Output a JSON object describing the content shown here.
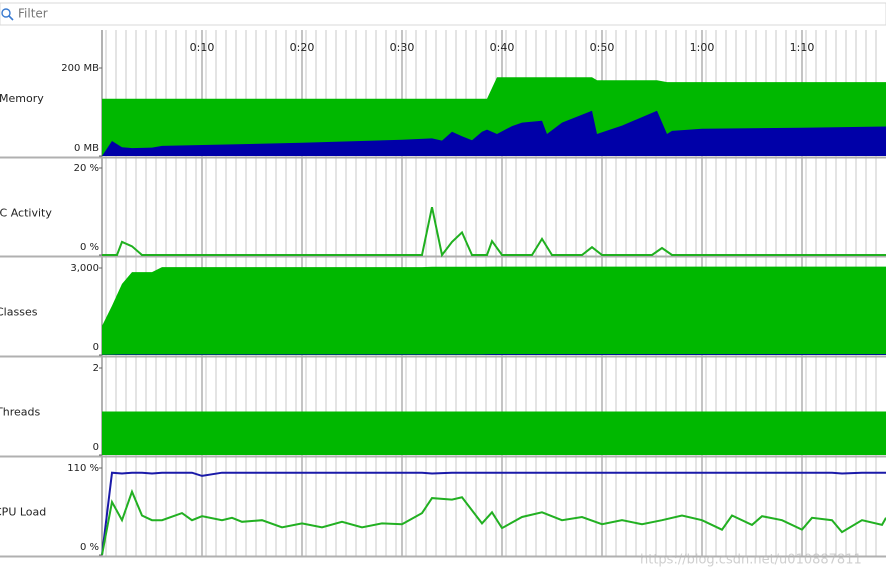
{
  "filter": {
    "placeholder": "Filter"
  },
  "time_axis": {
    "xlim": [
      0,
      78.4
    ],
    "xticks": [
      {
        "value": 10,
        "label": "0:10"
      },
      {
        "value": 20,
        "label": "0:20"
      },
      {
        "value": 30,
        "label": "0:30"
      },
      {
        "value": 40,
        "label": "0:40"
      },
      {
        "value": 50,
        "label": "0:50"
      },
      {
        "value": 60,
        "label": "1:00"
      },
      {
        "value": 70,
        "label": "1:10"
      }
    ]
  },
  "chart_data": [
    {
      "type": "area",
      "title": "Memory",
      "ylim": [
        0,
        200
      ],
      "yticks": [
        {
          "value": 0,
          "label": "0 MB"
        },
        {
          "value": 200,
          "label": "200 MB"
        }
      ],
      "x": [
        0,
        1,
        2,
        3,
        5,
        6,
        20,
        30,
        33,
        34,
        35,
        36,
        37,
        38,
        38.5,
        39.5,
        41,
        42,
        44,
        44.5,
        46,
        49,
        49.5,
        52,
        55.5,
        56.5,
        57,
        60,
        70,
        78.4
      ],
      "series": [
        {
          "color": "#00b800",
          "values": [
            130,
            130,
            130,
            130,
            130,
            130,
            130,
            130,
            130,
            130,
            130,
            130,
            130,
            130,
            130,
            179,
            179,
            179,
            179,
            179,
            179,
            179,
            172,
            172,
            172,
            168,
            168,
            168,
            168,
            168
          ]
        },
        {
          "color": "#0000a8",
          "values": [
            0,
            34,
            20,
            18,
            19,
            23,
            30,
            37,
            40,
            35,
            55,
            45,
            36,
            55,
            60,
            50,
            68,
            76,
            80,
            50,
            76,
            103,
            50,
            69,
            103,
            50,
            57,
            62,
            64,
            67
          ]
        }
      ]
    },
    {
      "type": "line",
      "title": "GC Activity",
      "ylim": [
        0,
        20
      ],
      "yticks": [
        {
          "value": 0,
          "label": "0 %"
        },
        {
          "value": 20,
          "label": "20 %"
        }
      ],
      "x": [
        0,
        1.5,
        2,
        3,
        4,
        32,
        33,
        34,
        35,
        36,
        37,
        38.5,
        39,
        40,
        43,
        44,
        45,
        48,
        49,
        50,
        55,
        56,
        57,
        78.4
      ],
      "series": [
        {
          "color": "#20b020",
          "values": [
            0,
            0,
            3,
            2,
            0,
            0,
            11,
            0,
            3,
            5.2,
            0,
            0,
            3.2,
            0,
            0,
            3.7,
            0,
            0,
            1.8,
            0,
            0,
            1.6,
            0,
            0
          ]
        }
      ]
    },
    {
      "type": "area",
      "title": "Classes",
      "ylim": [
        0,
        3000
      ],
      "yticks": [
        0,
        {
          "value": 3000,
          "label": "3,000"
        }
      ],
      "x": [
        0,
        1,
        2,
        3,
        5,
        6,
        32,
        33,
        38,
        39,
        78.4
      ],
      "series": [
        {
          "color": "#00b800",
          "values": [
            1000,
            1700,
            2450,
            2860,
            2860,
            3030,
            3030,
            3040,
            3040,
            3050,
            3050
          ]
        },
        {
          "color": "#0000a8",
          "values": [
            10,
            15,
            20,
            20,
            20,
            20,
            20,
            20,
            20,
            30,
            30
          ]
        }
      ]
    },
    {
      "type": "area",
      "title": "Threads",
      "ylim": [
        0,
        2
      ],
      "yticks": [
        0,
        2
      ],
      "x": [
        0,
        78.4
      ],
      "series": [
        {
          "color": "#00b800",
          "values": [
            1,
            1
          ]
        }
      ]
    },
    {
      "type": "line",
      "title": "CPU Load",
      "ylim": [
        0,
        110
      ],
      "yticks": [
        {
          "value": 0,
          "label": "0 %"
        },
        {
          "value": 110,
          "label": "110 %"
        }
      ],
      "x": [
        0,
        1,
        2,
        3,
        4,
        5,
        6,
        8,
        9,
        10,
        12,
        13,
        14,
        16,
        18,
        20,
        22,
        24,
        26,
        28,
        30,
        32,
        33,
        35,
        36,
        38,
        39,
        40,
        42,
        44,
        46,
        48,
        50,
        52,
        54,
        56,
        58,
        60,
        62,
        63,
        65,
        66,
        68,
        70,
        71,
        73,
        74,
        76,
        78,
        78.4
      ],
      "series": [
        {
          "color": "#1a1aa8",
          "values": [
            0,
            104,
            103,
            104,
            104,
            103,
            104,
            104,
            104,
            100,
            104,
            104,
            104,
            104,
            104,
            104,
            104,
            104,
            104,
            104,
            104,
            104,
            103,
            104,
            104,
            104,
            104,
            104,
            104,
            104,
            104,
            104,
            104,
            104,
            104,
            104,
            104,
            104,
            104,
            104,
            104,
            104,
            104,
            104,
            104,
            104,
            103,
            104,
            104,
            104
          ]
        },
        {
          "color": "#22b022",
          "values": [
            0,
            67,
            44,
            80,
            50,
            44,
            44,
            53,
            44,
            49,
            44,
            47,
            42,
            44,
            35,
            40,
            35,
            42,
            35,
            40,
            39,
            53,
            72,
            70,
            73,
            40,
            54,
            34,
            48,
            54,
            44,
            48,
            39,
            44,
            39,
            44,
            50,
            44,
            32,
            50,
            38,
            49,
            44,
            32,
            47,
            44,
            29,
            44,
            38,
            47
          ]
        }
      ]
    }
  ],
  "watermark": "https://blog.csdn.net/u010887811"
}
